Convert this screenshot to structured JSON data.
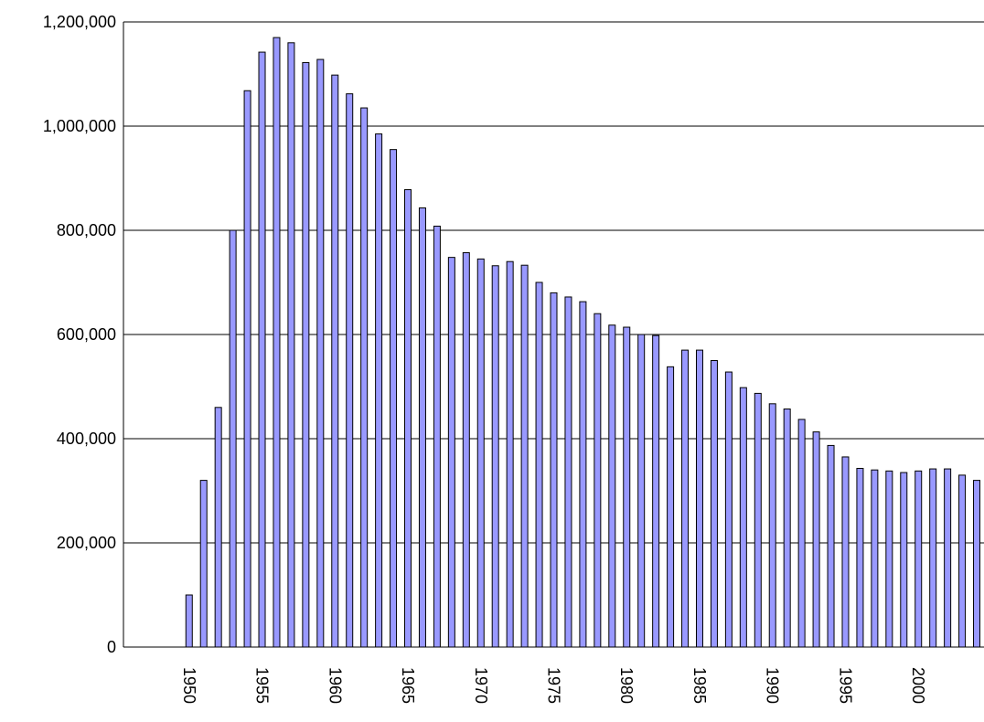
{
  "chart_data": {
    "type": "bar",
    "color": "#9999ff",
    "categories": [
      null,
      null,
      null,
      null,
      "1950",
      null,
      null,
      null,
      null,
      "1955",
      null,
      null,
      null,
      null,
      "1960",
      null,
      null,
      null,
      null,
      "1965",
      null,
      null,
      null,
      null,
      "1970",
      null,
      null,
      null,
      null,
      "1975",
      null,
      null,
      null,
      null,
      "1980",
      null,
      null,
      null,
      null,
      "1985",
      null,
      null,
      null,
      null,
      "1990",
      null,
      null,
      null,
      null,
      "1995",
      null,
      null,
      null,
      null,
      "2000",
      null,
      null,
      null,
      null
    ],
    "values": [
      null,
      null,
      null,
      null,
      100000,
      320000,
      460000,
      800000,
      1068000,
      1142000,
      1170000,
      1160000,
      1122000,
      1128000,
      1098000,
      1062000,
      1035000,
      985000,
      955000,
      878000,
      843000,
      808000,
      748000,
      757000,
      745000,
      732000,
      740000,
      733000,
      700000,
      680000,
      672000,
      663000,
      640000,
      618000,
      614000,
      600000,
      598000,
      538000,
      570000,
      570000,
      550000,
      528000,
      498000,
      487000,
      467000,
      457000,
      437000,
      413000,
      387000,
      365000,
      343000,
      340000,
      338000,
      335000,
      338000,
      342000,
      342000,
      330000,
      320000
    ],
    "ylim": [
      0,
      1200000
    ],
    "yticks": [
      0,
      {
        "value": 200000,
        "label": "200,000"
      },
      {
        "value": 400000,
        "label": "400,000"
      },
      {
        "value": 600000,
        "label": "600,000"
      },
      {
        "value": 800000,
        "label": "800,000"
      },
      {
        "value": 1000000,
        "label": "1,000,000"
      },
      {
        "value": 1200000,
        "label": "1,200,000"
      }
    ],
    "grid": true
  }
}
